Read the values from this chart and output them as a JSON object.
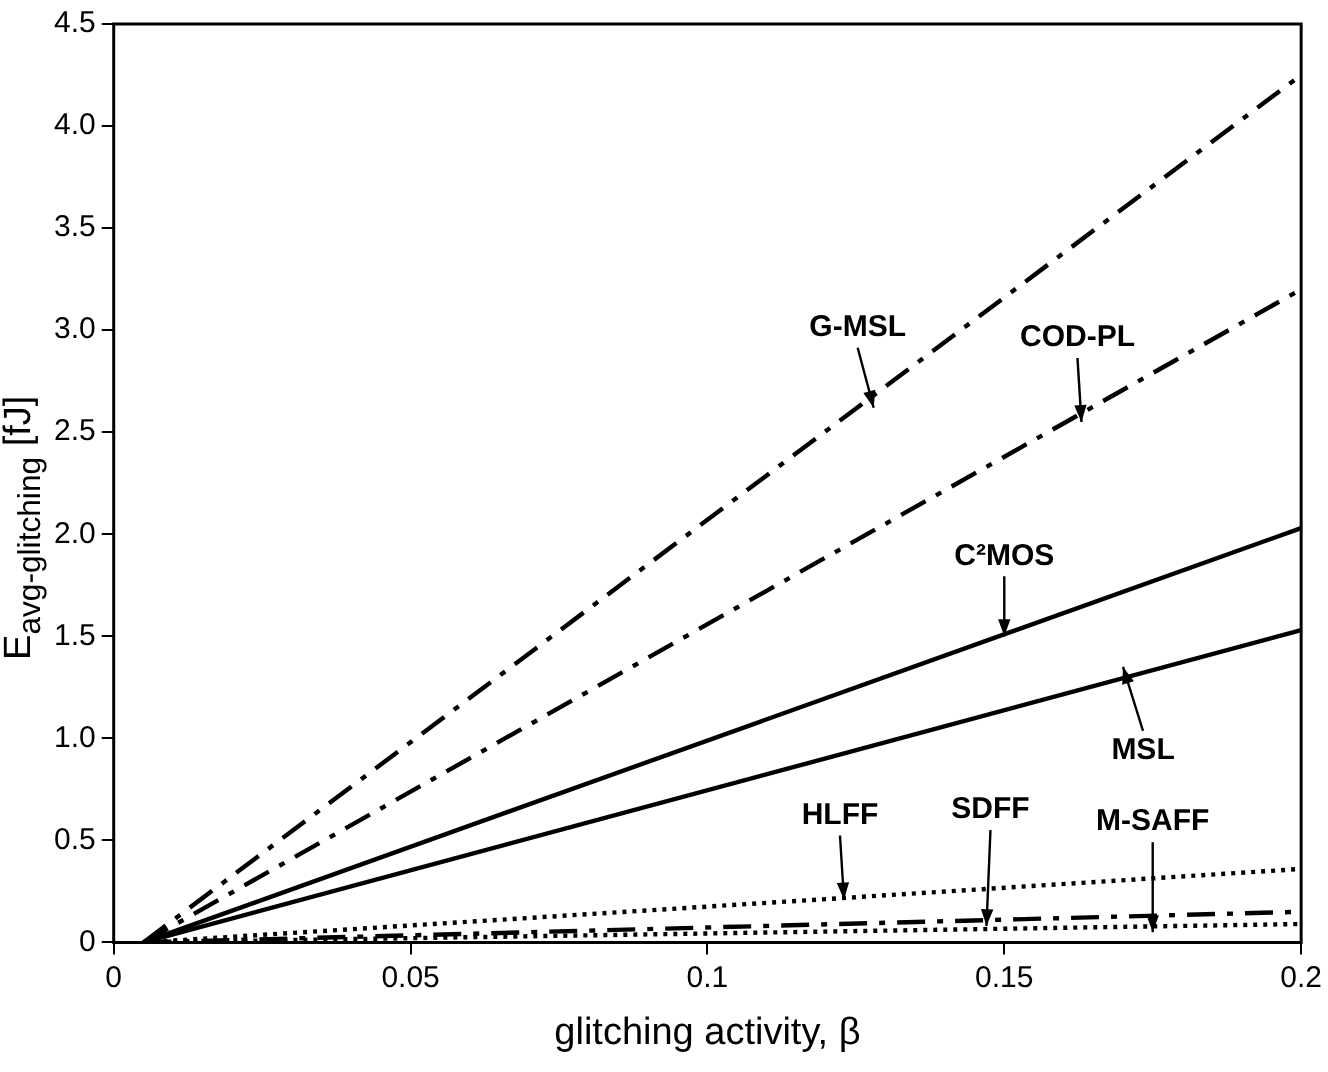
{
  "chart_data": {
    "type": "line",
    "xlabel": "glitching activity, β",
    "ylabel": "E$_{avg-glitching}$ [fJ]",
    "x": [
      0.005,
      0.2
    ],
    "series": [
      {
        "color": "#000000",
        "values": [
          0,
          4.25
        ],
        "line_style": "dashed"
      },
      {
        "color": "#000000",
        "values": [
          0,
          3.2
        ],
        "line_style": "dashed"
      },
      {
        "color": "#000000",
        "values": [
          0,
          2.03
        ],
        "line_style": "solid"
      },
      {
        "color": "#000000",
        "values": [
          0,
          1.53
        ],
        "line_style": "solid"
      },
      {
        "color": "#000000",
        "values": [
          0,
          0.36
        ],
        "line_style": "dotted"
      },
      {
        "color": "#000000",
        "values": [
          0,
          0.15
        ],
        "line_style": "dashed"
      },
      {
        "color": "#000000",
        "values": [
          0,
          0.09
        ],
        "line_style": "dotted"
      }
    ],
    "annotations": [
      {
        "text": "G-MSL",
        "x": 0.128,
        "y": 2.62
      },
      {
        "text": "COD-PL",
        "x": 0.163,
        "y": 2.55
      },
      {
        "text": "C²MOS",
        "x": 0.15,
        "y": 1.5
      },
      {
        "text": "MSL",
        "x": 0.17,
        "y": 1.35
      },
      {
        "text": "HLFF",
        "x": 0.123,
        "y": 0.21
      },
      {
        "text": "SDFF",
        "x": 0.147,
        "y": 0.08
      },
      {
        "text": "M-SAFF",
        "x": 0.175,
        "y": 0.05
      }
    ],
    "xlim": [
      0,
      0.2
    ],
    "ylim": [
      0,
      4.5
    ],
    "xticks": [
      0,
      0.05,
      0.1,
      0.15,
      0.2
    ],
    "yticks": [
      0,
      0.5,
      {
        "value": 1,
        "label": "1.0"
      },
      1.5,
      {
        "value": 2,
        "label": "2.0"
      },
      2.5,
      {
        "value": 3,
        "label": "3.0"
      },
      3.5,
      {
        "value": 4,
        "label": "4.0"
      },
      4.5
    ],
    "grid": false,
    "legend": false,
    "marker": "none"
  }
}
